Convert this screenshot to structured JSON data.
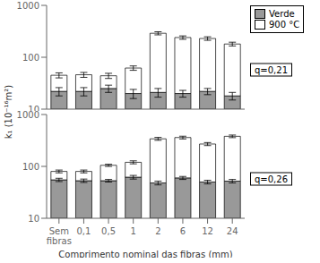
{
  "chart_data": [
    {
      "type": "bar",
      "stacked": true,
      "log": "y",
      "categories": [
        "Sem\nfibras",
        "0,1",
        "0,5",
        "1",
        "2",
        "6",
        "12",
        "24"
      ],
      "series": [
        {
          "name": "Verde",
          "color": "#999999",
          "values": [
            22,
            22,
            25,
            20,
            21,
            20,
            22,
            18
          ],
          "errors": [
            4,
            4,
            4,
            4,
            4,
            3,
            3,
            3
          ]
        },
        {
          "name": "900 °C",
          "color": "#ffffff",
          "values": [
            23,
            24,
            19,
            42,
            269,
            220,
            208,
            162
          ],
          "errors": [
            5,
            5,
            5,
            6,
            20,
            18,
            18,
            15
          ]
        }
      ],
      "ylim": [
        10,
        1000
      ],
      "yticks": [
        10,
        100,
        1000
      ],
      "ylabel": "k₁ (10⁻¹⁶m²)",
      "annotation": "q=0,21",
      "legend": "right",
      "grid": false,
      "tick_labels": "y"
    },
    {
      "type": "bar",
      "stacked": true,
      "log": "y",
      "categories": [
        "Sem\nfibras",
        "0,1",
        "0,5",
        "1",
        "2",
        "6",
        "12",
        "24"
      ],
      "series": [
        {
          "name": "Verde",
          "color": "#999999",
          "values": [
            55,
            53,
            53,
            62,
            48,
            60,
            50,
            52
          ],
          "errors": [
            4,
            4,
            3,
            5,
            4,
            4,
            4,
            4
          ]
        },
        {
          "name": "900 °C",
          "color": "#ffffff",
          "values": [
            25,
            27,
            52,
            58,
            292,
            300,
            220,
            328
          ],
          "errors": [
            5,
            5,
            5,
            8,
            22,
            22,
            18,
            22
          ]
        }
      ],
      "ylim": [
        10,
        1000
      ],
      "yticks": [
        10,
        100,
        1000
      ],
      "xlabel": "Comprimento nominal das fibras (mm)",
      "annotation": "q=0,26",
      "grid": false
    }
  ]
}
